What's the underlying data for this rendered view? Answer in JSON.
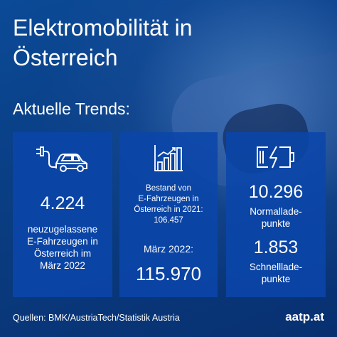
{
  "header": {
    "title_line1": "Elektromobilität in",
    "title_line2": "Österreich",
    "subtitle": "Aktuelle Trends:"
  },
  "cards": {
    "new_registrations": {
      "icon": "car-plug-icon",
      "value": "4.224",
      "text_line1": "neuzugelassene",
      "text_line2": "E-Fahrzeugen in",
      "text_line3": "Österreich im",
      "text_line4": "März 2022"
    },
    "fleet": {
      "icon": "bar-chart-icon",
      "text_line1": "Bestand von",
      "text_line2": "E-Fahrzeugen in",
      "text_line3": "Österreich in 2021:",
      "text_line4": "106.457",
      "label": "März 2022:",
      "value": "115.970"
    },
    "charging": {
      "icon": "battery-charging-icon",
      "normal_value": "10.296",
      "normal_label_line1": "Normallade-",
      "normal_label_line2": "punkte",
      "fast_value": "1.853",
      "fast_label_line1": "Schnelllade-",
      "fast_label_line2": "punkte"
    }
  },
  "footer": {
    "sources": "Quellen: BMK/AustriaTech/Statistik Austria",
    "brand": "aatp.at"
  }
}
